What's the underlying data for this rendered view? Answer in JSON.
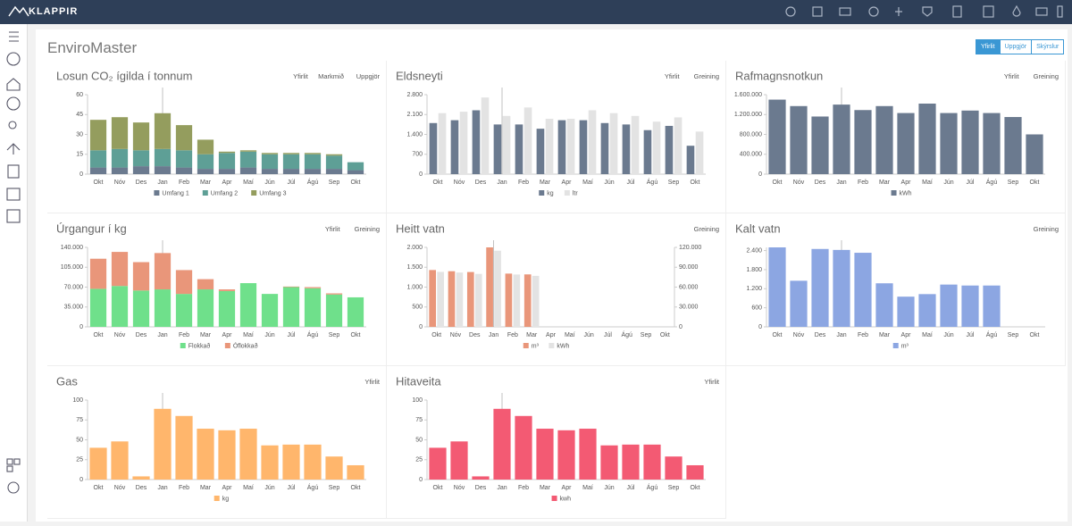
{
  "header": {
    "logo": "KLAPPIR",
    "app_title": "EnviroMaster",
    "tabs": [
      "Yfirlit",
      "Uppgjör",
      "Skýrslur"
    ]
  },
  "chart_data": [
    {
      "type": "bar",
      "stacked": true,
      "title": "Losun CO₂ ígilda í tonnum",
      "links": [
        "Yfirlit",
        "Markmið",
        "Uppgjör"
      ],
      "categories": [
        "Okt",
        "Nóv",
        "Des",
        "Jan",
        "Feb",
        "Mar",
        "Apr",
        "Maí",
        "Jún",
        "Júl",
        "Ágú",
        "Sep",
        "Okt"
      ],
      "series": [
        {
          "name": "Umfang 1",
          "color": "#6b7a8f",
          "values": [
            5,
            5,
            6,
            6,
            5,
            4,
            4,
            5,
            4,
            4,
            4,
            4,
            3
          ]
        },
        {
          "name": "Umfang 2",
          "color": "#5e9f96",
          "values": [
            13,
            14,
            12,
            13,
            13,
            11,
            12,
            12,
            11,
            11,
            11,
            10,
            6
          ]
        },
        {
          "name": "Umfang 3",
          "color": "#949d5e",
          "values": [
            23,
            24,
            21,
            27,
            19,
            11,
            1,
            1,
            1,
            1,
            1,
            1,
            0
          ]
        }
      ],
      "ylim": [
        0,
        60
      ],
      "yticks": [
        0,
        15,
        30,
        45,
        60
      ]
    },
    {
      "type": "bar",
      "stacked": false,
      "title": "Eldsneyti",
      "links": [
        "Yfirlit",
        "Greining"
      ],
      "categories": [
        "Okt",
        "Nóv",
        "Des",
        "Jan",
        "Feb",
        "Mar",
        "Apr",
        "Maí",
        "Jún",
        "Júl",
        "Ágú",
        "Sep",
        "Okt"
      ],
      "series": [
        {
          "name": "kg",
          "color": "#6b7a8f",
          "values": [
            1800,
            1900,
            2250,
            1750,
            1750,
            1600,
            1900,
            1900,
            1800,
            1750,
            1550,
            1700,
            1000
          ]
        },
        {
          "name": "ltr",
          "color": "#e3e3e3",
          "values": [
            2150,
            2200,
            2700,
            2050,
            2350,
            1950,
            1950,
            2250,
            2150,
            2050,
            1850,
            2000,
            1500
          ]
        }
      ],
      "ylim": [
        0,
        2800
      ],
      "yticks": [
        0,
        700,
        {
          "value": 1400,
          "label": "1.400"
        },
        {
          "value": 2100,
          "label": "2.100"
        },
        {
          "value": 2800,
          "label": "2.800"
        }
      ]
    },
    {
      "type": "bar",
      "stacked": false,
      "title": "Rafmagnsnotkun",
      "links": [
        "Yfirlit",
        "Greining"
      ],
      "categories": [
        "Okt",
        "Nóv",
        "Des",
        "Jan",
        "Feb",
        "Mar",
        "Apr",
        "Maí",
        "Jún",
        "Júl",
        "Ágú",
        "Sep",
        "Okt"
      ],
      "series": [
        {
          "name": "kWh",
          "color": "#6b7a8f",
          "values": [
            1500000,
            1370000,
            1160000,
            1400000,
            1290000,
            1370000,
            1230000,
            1420000,
            1230000,
            1280000,
            1230000,
            1150000,
            800000
          ]
        }
      ],
      "ylim": [
        0,
        1600000
      ],
      "yticks": [
        0,
        {
          "value": 400000,
          "label": "400.000"
        },
        {
          "value": 800000,
          "label": "800.000"
        },
        {
          "value": 1200000,
          "label": "1.200.000"
        },
        {
          "value": 1600000,
          "label": "1.600.000"
        }
      ]
    },
    {
      "type": "bar",
      "stacked": true,
      "title": "Úrgangur í kg",
      "links": [
        "Yfirlit",
        "Greining"
      ],
      "categories": [
        "Okt",
        "Nóv",
        "Des",
        "Jan",
        "Feb",
        "Mar",
        "Apr",
        "Maí",
        "Jún",
        "Júl",
        "Ágú",
        "Sep",
        "Okt"
      ],
      "series": [
        {
          "name": "Flokkað",
          "color": "#6fe08b",
          "values": [
            67000,
            72000,
            64000,
            66000,
            58000,
            66000,
            63000,
            77000,
            58000,
            70000,
            68000,
            57000,
            52000
          ]
        },
        {
          "name": "Óflokkað",
          "color": "#e9967a",
          "values": [
            53000,
            60000,
            50000,
            64000,
            42000,
            18000,
            3000,
            0,
            0,
            1000,
            2000,
            2000,
            0
          ]
        }
      ],
      "ylim": [
        0,
        140000
      ],
      "yticks": [
        0,
        {
          "value": 35000,
          "label": "35.000"
        },
        {
          "value": 70000,
          "label": "70.000"
        },
        {
          "value": 105000,
          "label": "105.000"
        },
        {
          "value": 140000,
          "label": "140.000"
        }
      ]
    },
    {
      "type": "bar",
      "stacked": false,
      "title": "Heitt vatn",
      "links": [
        "Greining"
      ],
      "categories": [
        "Okt",
        "Nóv",
        "Des",
        "Jan",
        "Feb",
        "Mar",
        "Apr",
        "Maí",
        "Jún",
        "Júl",
        "Ágú",
        "Sep",
        "Okt"
      ],
      "series": [
        {
          "name": "m³",
          "color": "#e9967a",
          "values": [
            1430,
            1400,
            1380,
            2000,
            1340,
            1320,
            null,
            null,
            null,
            null,
            null,
            null,
            null
          ]
        },
        {
          "name": "kWh",
          "color": "#e3e3e3",
          "axis": "y2",
          "values": [
            83000,
            82000,
            80000,
            115000,
            79000,
            77000,
            null,
            null,
            null,
            null,
            null,
            null,
            null
          ]
        }
      ],
      "ylim": [
        0,
        2000
      ],
      "yticks": [
        0,
        500,
        {
          "value": 1000,
          "label": "1.000"
        },
        {
          "value": 1500,
          "label": "1.500"
        },
        {
          "value": 2000,
          "label": "2.000"
        }
      ],
      "y2lim": [
        0,
        120000
      ],
      "y2ticks": [
        0,
        {
          "value": 30000,
          "label": "30.000"
        },
        {
          "value": 60000,
          "label": "60.000"
        },
        {
          "value": 90000,
          "label": "90.000"
        },
        {
          "value": 120000,
          "label": "120.000"
        }
      ]
    },
    {
      "type": "bar",
      "stacked": false,
      "title": "Kalt vatn",
      "links": [
        "Greining"
      ],
      "categories": [
        "Okt",
        "Nóv",
        "Des",
        "Jan",
        "Feb",
        "Mar",
        "Apr",
        "Maí",
        "Jún",
        "Júl",
        "Ágú",
        "Sep",
        "Okt"
      ],
      "series": [
        {
          "name": "m³",
          "color": "#8ca6e2",
          "values": [
            2500,
            1450,
            2450,
            2420,
            2330,
            1370,
            950,
            1030,
            1330,
            1300,
            1300,
            null,
            null
          ]
        }
      ],
      "ylim": [
        0,
        2500
      ],
      "yticks": [
        0,
        600,
        {
          "value": 1200,
          "label": "1.200"
        },
        {
          "value": 1800,
          "label": "1.800"
        },
        {
          "value": 2400,
          "label": "2.400"
        }
      ]
    },
    {
      "type": "bar",
      "stacked": false,
      "title": "Gas",
      "links": [
        "Yfirlit"
      ],
      "categories": [
        "Okt",
        "Nóv",
        "Des",
        "Jan",
        "Feb",
        "Mar",
        "Apr",
        "Maí",
        "Jún",
        "Júl",
        "Ágú",
        "Sep",
        "Okt"
      ],
      "series": [
        {
          "name": "kg",
          "color": "#ffb66c",
          "values": [
            40,
            48,
            4,
            89,
            80,
            64,
            62,
            64,
            43,
            44,
            44,
            29,
            18
          ]
        }
      ],
      "ylim": [
        0,
        100
      ],
      "yticks": [
        0,
        25,
        50,
        75,
        100
      ]
    },
    {
      "type": "bar",
      "stacked": false,
      "title": "Hitaveita",
      "links": [
        "Yfirlit"
      ],
      "categories": [
        "Okt",
        "Nóv",
        "Des",
        "Jan",
        "Feb",
        "Mar",
        "Apr",
        "Maí",
        "Jún",
        "Júl",
        "Ágú",
        "Sep",
        "Okt"
      ],
      "series": [
        {
          "name": "kwh",
          "color": "#f35a73",
          "values": [
            40,
            48,
            4,
            89,
            80,
            64,
            62,
            64,
            43,
            44,
            44,
            29,
            18
          ]
        }
      ],
      "ylim": [
        0,
        100
      ],
      "yticks": [
        0,
        25,
        50,
        75,
        100
      ]
    }
  ]
}
